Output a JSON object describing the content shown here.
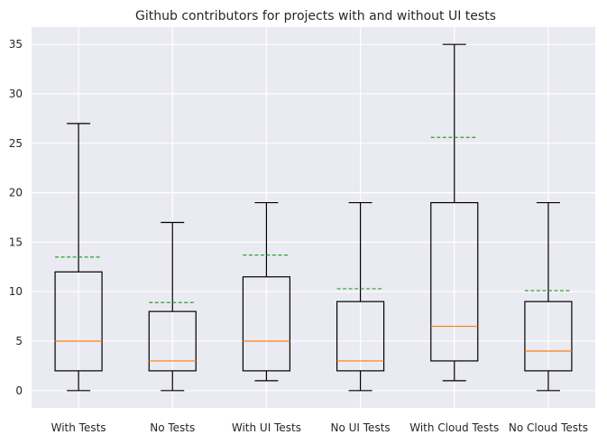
{
  "chart_data": {
    "type": "box",
    "title": "Github contributors for projects with and without UI tests",
    "xlabel": "",
    "ylabel": "",
    "ylim": [
      -1.75,
      36.75
    ],
    "yticks": [
      0,
      5,
      10,
      15,
      20,
      25,
      30,
      35
    ],
    "grid": true,
    "show_means": true,
    "categories": [
      "With Tests",
      "No Tests",
      "With UI Tests",
      "No UI Tests",
      "With Cloud Tests",
      "No Cloud Tests"
    ],
    "boxes": [
      {
        "whisker_low": 0,
        "q1": 2,
        "median": 5,
        "q3": 12,
        "whisker_high": 27,
        "mean": 13.5
      },
      {
        "whisker_low": 0,
        "q1": 2,
        "median": 3,
        "q3": 8,
        "whisker_high": 17,
        "mean": 8.9
      },
      {
        "whisker_low": 1,
        "q1": 2,
        "median": 5,
        "q3": 11.5,
        "whisker_high": 19,
        "mean": 13.7
      },
      {
        "whisker_low": 0,
        "q1": 2,
        "median": 3,
        "q3": 9,
        "whisker_high": 19,
        "mean": 10.3
      },
      {
        "whisker_low": 1,
        "q1": 3,
        "median": 6.5,
        "q3": 19,
        "whisker_high": 35,
        "mean": 25.6
      },
      {
        "whisker_low": 0,
        "q1": 2,
        "median": 4,
        "q3": 9,
        "whisker_high": 19,
        "mean": 10.1
      }
    ],
    "colors": {
      "background": "#eaeaf2",
      "grid": "#ffffff",
      "box": "#000000",
      "median": "#ff7f0e",
      "mean": "#2ca02c"
    }
  }
}
